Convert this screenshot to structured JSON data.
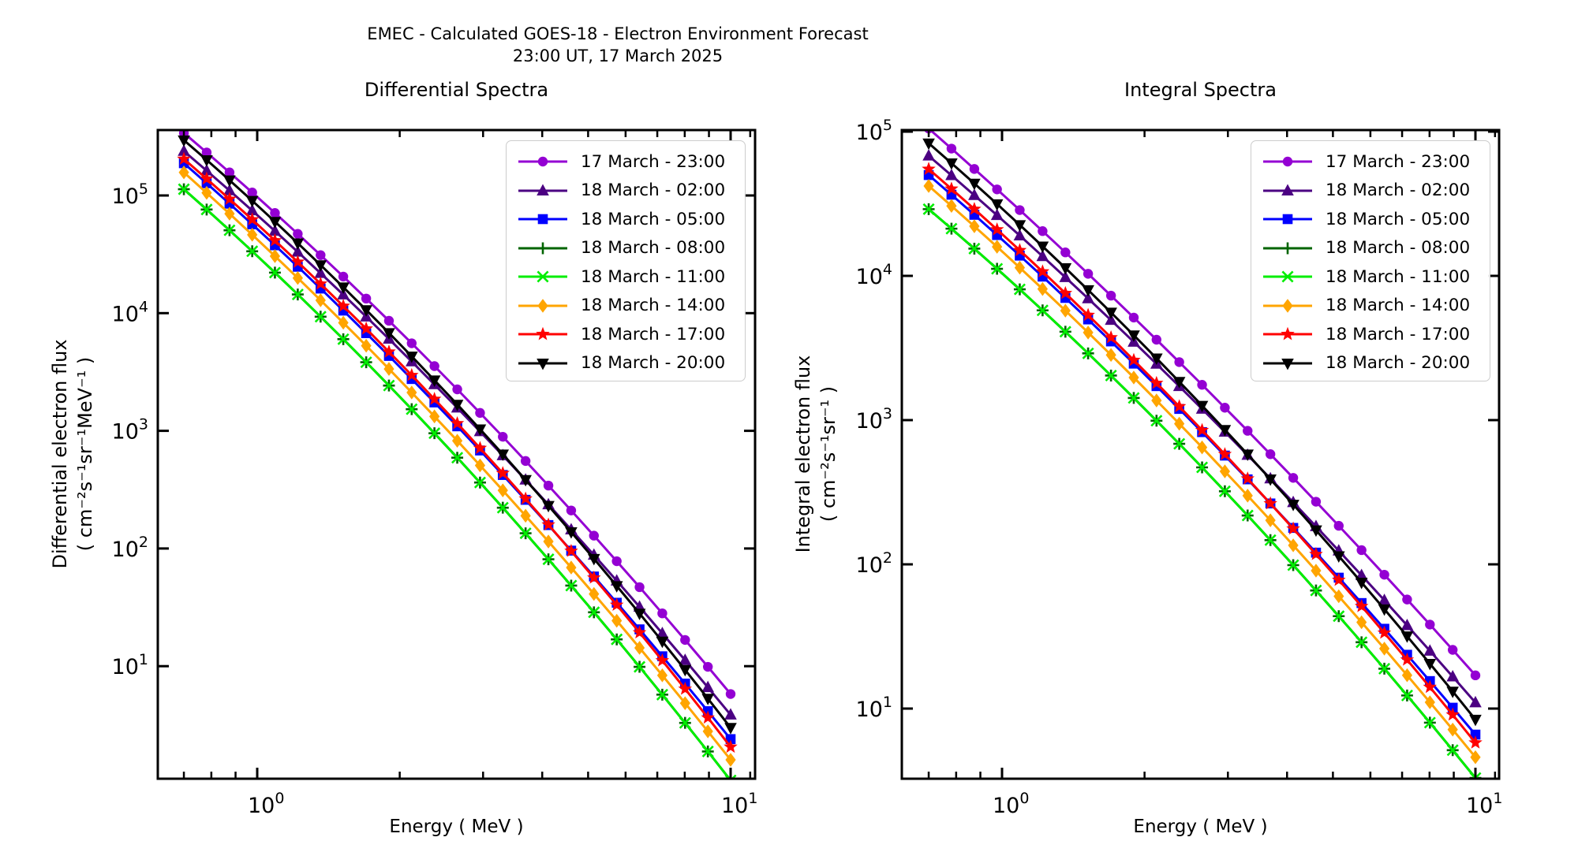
{
  "figure": {
    "suptitle_line1": "EMEC - Calculated GOES-18 - Electron Environment Forecast",
    "suptitle_line2": "23:00 UT, 17 March 2025"
  },
  "chart_data": [
    {
      "type": "line",
      "panel": "left",
      "title": "Differential Spectra",
      "xlabel": "Energy ( MeV )",
      "ylabel_line1": "Differential electron flux",
      "ylabel_line2": "( cm⁻²s⁻¹sr⁻¹MeV⁻¹ )",
      "x_scale": "log",
      "y_scale": "log",
      "xlim": [
        0.617,
        11.26
      ],
      "ylim": [
        1.1,
        360000
      ],
      "grid": false,
      "legend_position": "upper right",
      "x_axis": {
        "major_ticks": [
          1,
          10
        ],
        "minor_ticks": [
          0.7,
          0.8,
          0.9,
          2,
          3,
          4,
          5,
          6,
          7,
          8,
          9,
          11
        ]
      },
      "y_axis": {
        "major_tick_exponents": [
          5,
          4,
          3,
          2,
          1
        ]
      },
      "anchor_energies_mev": [
        0.7,
        2.0,
        10.0
      ],
      "marker_energies_mev": [
        0.7,
        0.782,
        0.874,
        0.976,
        1.09,
        1.218,
        1.361,
        1.52,
        1.699,
        1.898,
        2.12,
        2.368,
        2.646,
        2.956,
        3.302,
        3.689,
        4.122,
        4.605,
        5.144,
        5.747,
        6.421,
        7.173,
        8.014,
        8.953,
        10.0
      ],
      "series": [
        {
          "label": "17 March - 23:00",
          "color": "#9400D3",
          "marker": "circle",
          "flux_at_anchors": [
            340000,
            7000,
            5.8
          ]
        },
        {
          "label": "18 March - 02:00",
          "color": "#4B0082",
          "marker": "triangle-up",
          "flux_at_anchors": [
            238000,
            4900,
            3.86
          ]
        },
        {
          "label": "18 March - 05:00",
          "color": "#0000FF",
          "marker": "square",
          "flux_at_anchors": [
            188000,
            3500,
            2.4
          ]
        },
        {
          "label": "18 March - 08:00",
          "color": "#006400",
          "marker": "plus",
          "flux_at_anchors": [
            113000,
            1950,
            1.07
          ]
        },
        {
          "label": "18 March - 11:00",
          "color": "#00EE00",
          "marker": "x",
          "flux_at_anchors": [
            113000,
            1950,
            1.07
          ]
        },
        {
          "label": "18 March - 14:00",
          "color": "#FFA500",
          "marker": "diamond",
          "flux_at_anchors": [
            157000,
            2700,
            1.6
          ]
        },
        {
          "label": "18 March - 17:00",
          "color": "#FF0000",
          "marker": "star",
          "flux_at_anchors": [
            204000,
            3780,
            2.06
          ]
        },
        {
          "label": "18 March - 20:00",
          "color": "#000000",
          "marker": "triangle-down",
          "flux_at_anchors": [
            295000,
            5470,
            3.0
          ]
        }
      ]
    },
    {
      "type": "line",
      "panel": "right",
      "title": "Integral Spectra",
      "xlabel": "Energy ( MeV )",
      "ylabel_line1": "Integral electron flux",
      "ylabel_line2": "( cm⁻²s⁻¹sr⁻¹ )",
      "x_scale": "log",
      "y_scale": "log",
      "xlim": [
        0.617,
        11.26
      ],
      "ylim": [
        3.3,
        103000
      ],
      "grid": false,
      "legend_position": "upper right",
      "x_axis": {
        "major_ticks": [
          1,
          10
        ],
        "minor_ticks": [
          0.7,
          0.8,
          0.9,
          2,
          3,
          4,
          5,
          6,
          7,
          8,
          9,
          11
        ]
      },
      "y_axis": {
        "major_tick_exponents": [
          5,
          4,
          3,
          2,
          1
        ]
      },
      "anchor_energies_mev": [
        0.7,
        2.0,
        10.0
      ],
      "marker_energies_mev": [
        0.7,
        0.782,
        0.874,
        0.976,
        1.09,
        1.218,
        1.361,
        1.52,
        1.699,
        1.898,
        2.12,
        2.368,
        2.646,
        2.956,
        3.302,
        3.689,
        4.122,
        4.605,
        5.144,
        5.747,
        6.421,
        7.173,
        8.014,
        8.953,
        10.0
      ],
      "series": [
        {
          "label": "17 March - 23:00",
          "color": "#9400D3",
          "marker": "circle",
          "flux_at_anchors": [
            105000,
            4350,
            17
          ]
        },
        {
          "label": "18 March - 02:00",
          "color": "#4B0082",
          "marker": "triangle-up",
          "flux_at_anchors": [
            68000,
            2950,
            11
          ]
        },
        {
          "label": "18 March - 05:00",
          "color": "#0000FF",
          "marker": "square",
          "flux_at_anchors": [
            50000,
            2080,
            6.6
          ]
        },
        {
          "label": "18 March - 08:00",
          "color": "#006400",
          "marker": "plus",
          "flux_at_anchors": [
            29000,
            1200,
            3.3
          ]
        },
        {
          "label": "18 March - 11:00",
          "color": "#00EE00",
          "marker": "x",
          "flux_at_anchors": [
            29000,
            1200,
            3.3
          ]
        },
        {
          "label": "18 March - 14:00",
          "color": "#FFA500",
          "marker": "diamond",
          "flux_at_anchors": [
            42000,
            1660,
            4.6
          ]
        },
        {
          "label": "18 March - 17:00",
          "color": "#FF0000",
          "marker": "star",
          "flux_at_anchors": [
            55000,
            2190,
            5.8
          ]
        },
        {
          "label": "18 March - 20:00",
          "color": "#000000",
          "marker": "triangle-down",
          "flux_at_anchors": [
            83000,
            3260,
            8.4
          ]
        }
      ]
    }
  ]
}
